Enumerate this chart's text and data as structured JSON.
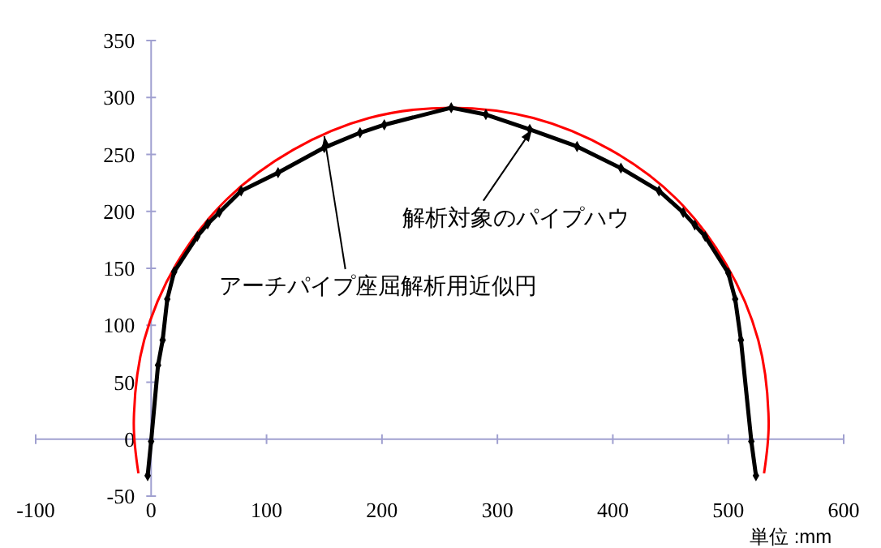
{
  "chart_data": {
    "type": "line",
    "xlabel": "単位 :mm",
    "xlim": [
      -100,
      600
    ],
    "ylim": [
      -50,
      350
    ],
    "xticks": [
      -100,
      0,
      100,
      200,
      300,
      400,
      500,
      600
    ],
    "yticks": [
      -50,
      0,
      50,
      100,
      150,
      200,
      250,
      300,
      350
    ],
    "grid": false,
    "ref_lines": [
      {
        "axis": "y",
        "value": 0,
        "color": "#a0a0d0"
      }
    ],
    "series": [
      {
        "color": "#ff0000",
        "marker": "none",
        "x": [
          531,
          535,
          526,
          498,
          455,
          398,
          331,
          260,
          189,
          123,
          66,
          22,
          -6,
          -15,
          -11
        ],
        "values": [
          -30,
          16,
          87,
          154,
          211,
          254,
          282,
          291,
          282,
          254,
          211,
          154,
          87,
          16,
          -30
        ]
      },
      {
        "color": "#000000",
        "marker": "diamond",
        "x": [
          -3,
          0,
          6,
          10,
          14,
          20,
          40,
          49,
          59,
          78,
          110,
          150,
          181,
          202,
          260,
          290,
          328,
          369,
          407,
          440,
          461,
          471,
          480,
          500,
          506,
          511,
          520,
          524
        ],
        "values": [
          -32,
          -2,
          65,
          87,
          123,
          147,
          178,
          189,
          199,
          218,
          234,
          256,
          269,
          276,
          291,
          285,
          272,
          257,
          238,
          218,
          199,
          188,
          178,
          146,
          123,
          87,
          -2,
          -32
        ]
      }
    ],
    "annotations": [
      {
        "text": "アーチパイプ座屈解析用近似円",
        "x": 150,
        "y": 266
      },
      {
        "text": "解析対象のパイプハウ",
        "x": 330,
        "y": 272
      }
    ]
  }
}
